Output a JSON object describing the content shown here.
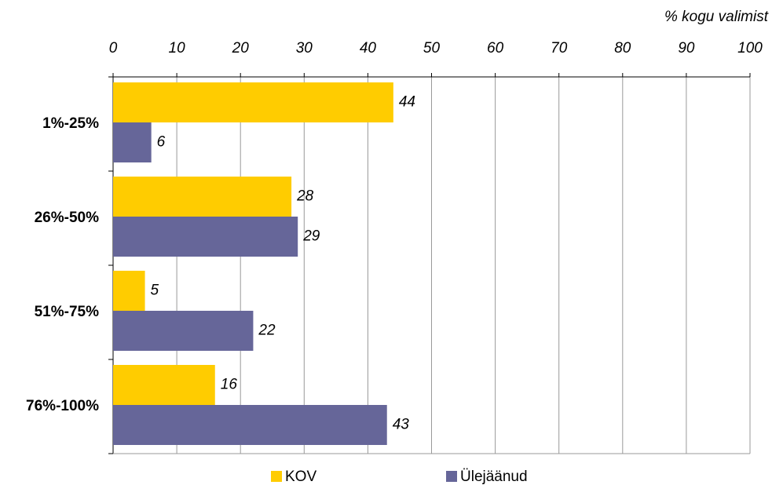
{
  "chart_data": {
    "type": "barh",
    "axis_label": "% kogu valimist",
    "categories": [
      "1%-25%",
      "26%-50%",
      "51%-75%",
      "76%-100%"
    ],
    "series": [
      {
        "name": "KOV",
        "color": "#ffcc00",
        "values": [
          44,
          28,
          5,
          16
        ]
      },
      {
        "name": "Ülejäänud",
        "color": "#666699",
        "values": [
          6,
          29,
          22,
          43
        ]
      }
    ],
    "xlim": [
      0,
      100
    ],
    "xticks": [
      0,
      10,
      20,
      30,
      40,
      50,
      60,
      70,
      80,
      90,
      100
    ],
    "grid": true,
    "legend": "bottom"
  }
}
